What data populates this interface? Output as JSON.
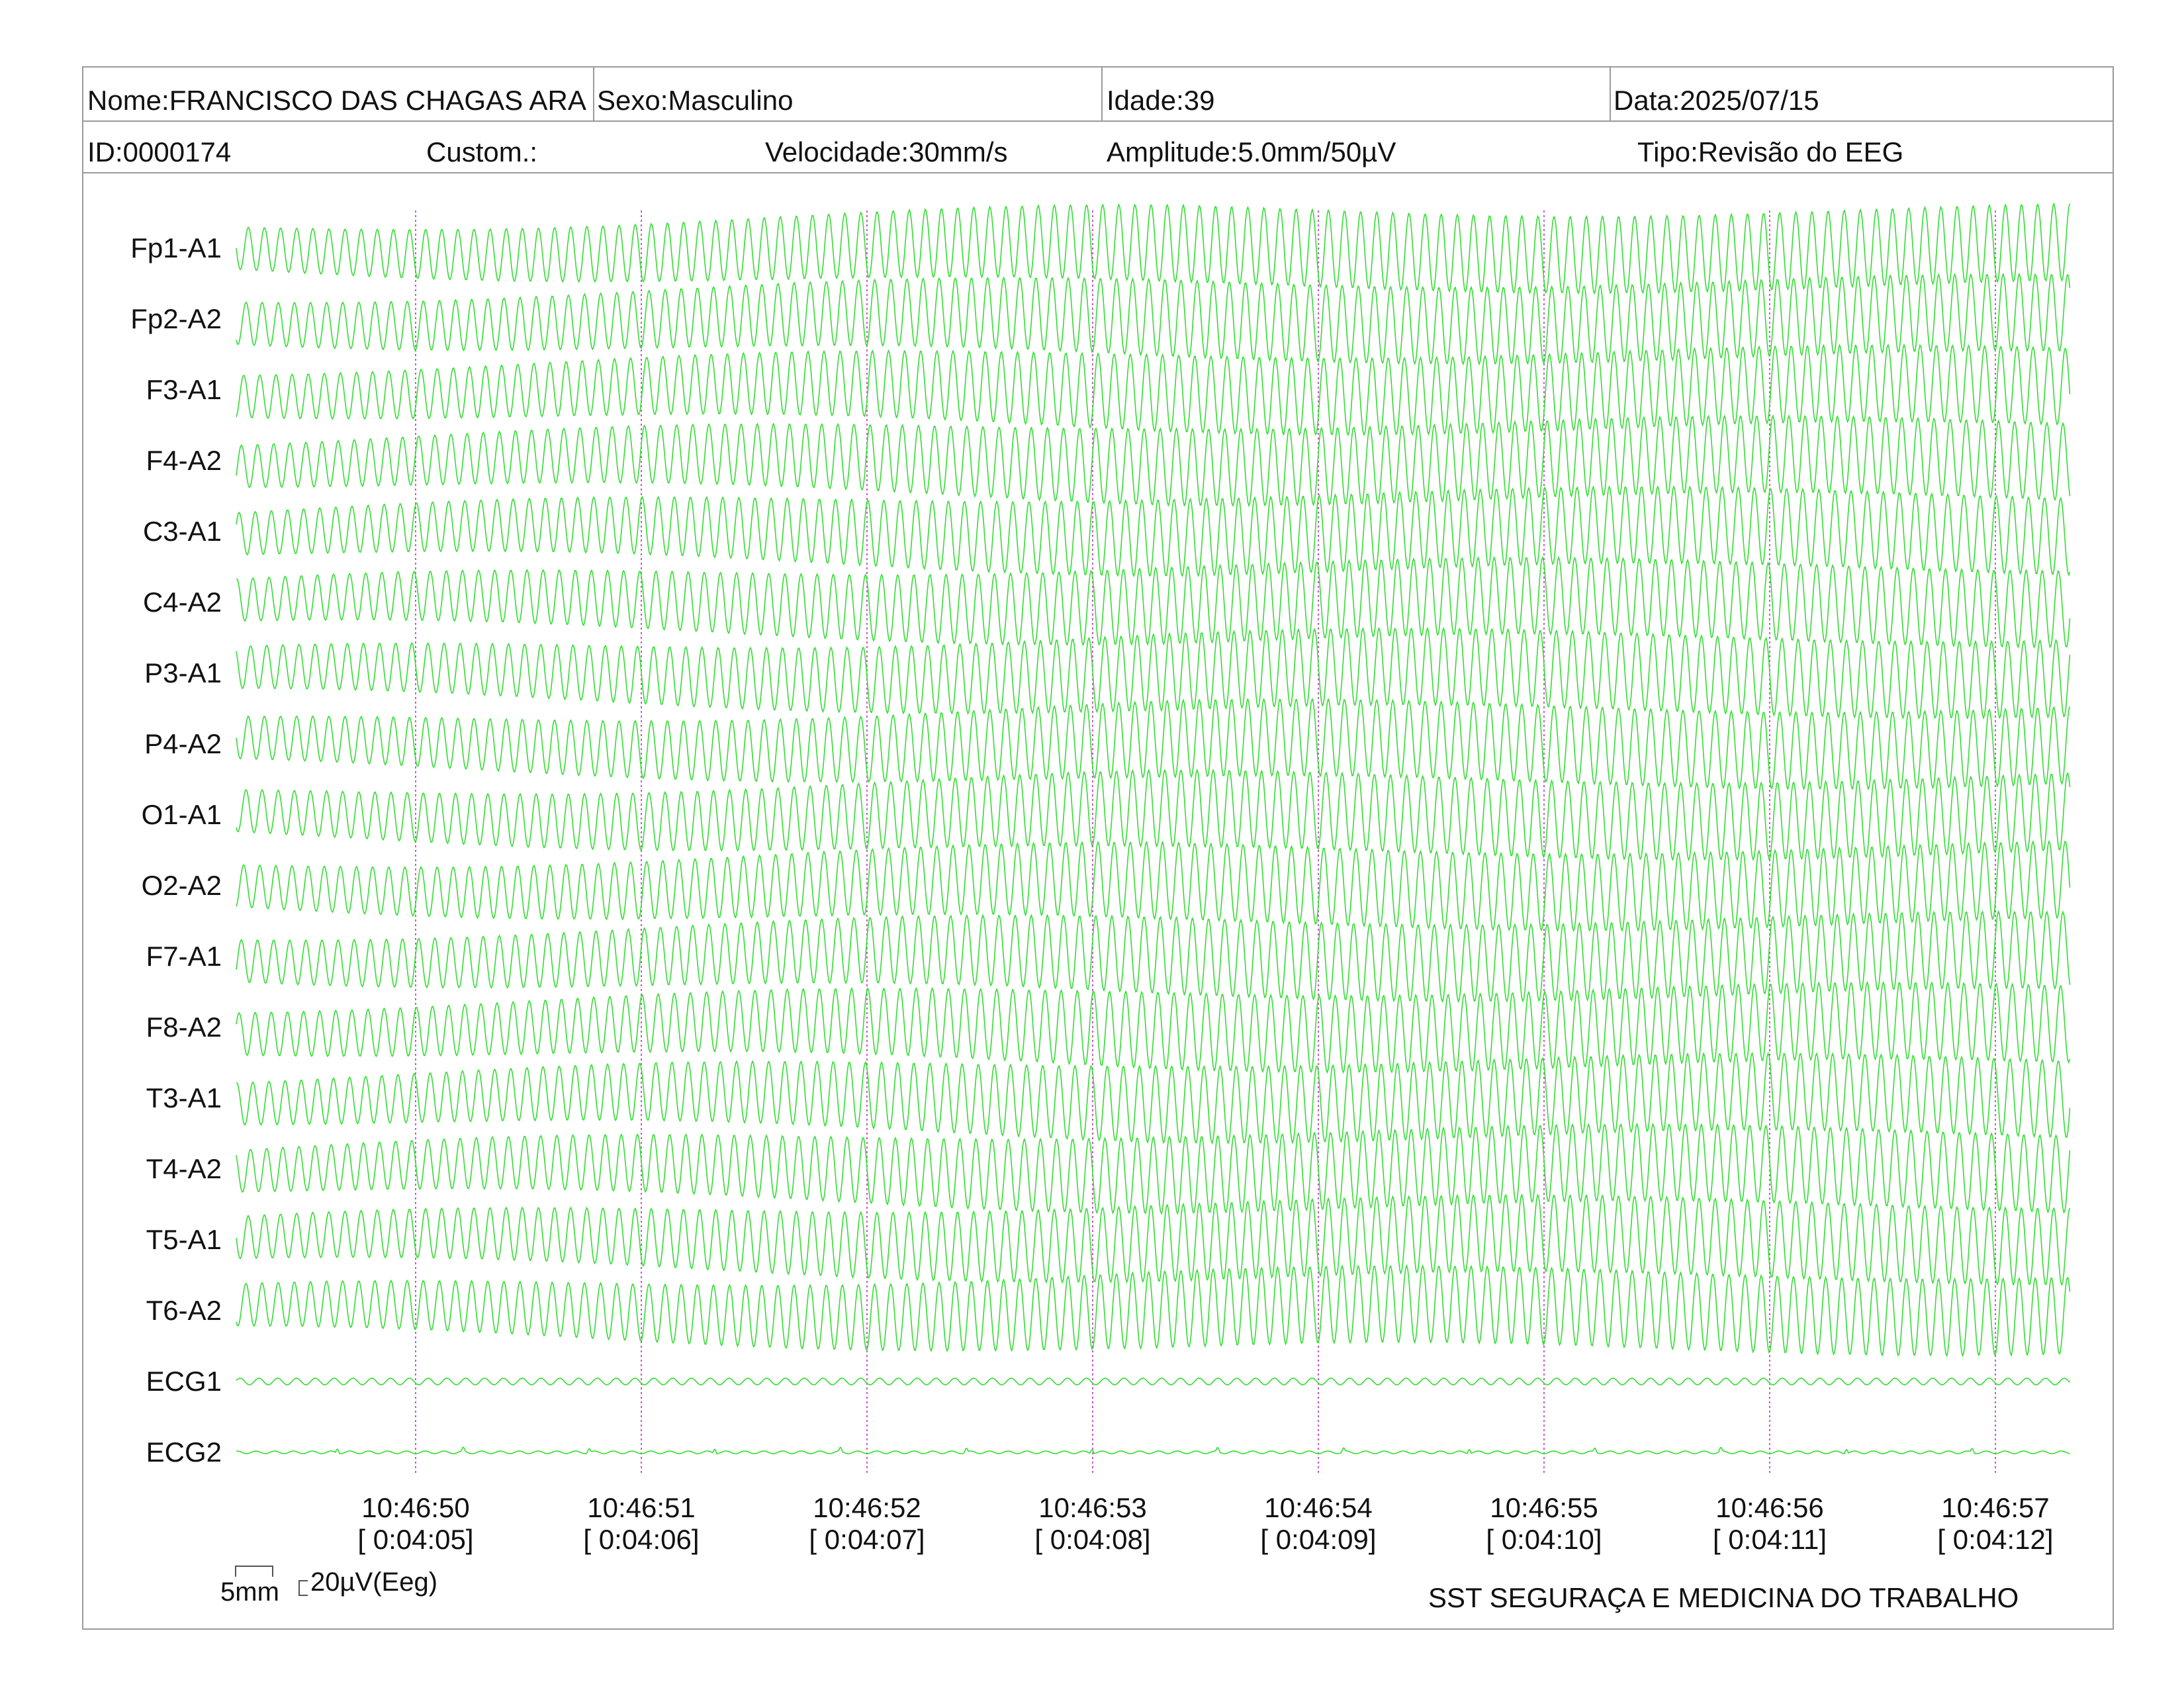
{
  "header": {
    "nome": "Nome:FRANCISCO DAS CHAGAS ARA",
    "sexo": "Sexo:Masculino",
    "idade": "Idade:39",
    "data": "Data:2025/07/15",
    "id": "ID:0000174",
    "custom": "Custom.:",
    "velocidade": "Velocidade:30mm/s",
    "amplitude": "Amplitude:5.0mm/50µV",
    "tipo": "Tipo:Revisão do EEG"
  },
  "scale": {
    "mm_label": "5mm",
    "uv_label": "20µV(Eeg)"
  },
  "footer": {
    "organization": "SST SEGURAÇA E MEDICINA DO TRABALHO"
  },
  "colors": {
    "trace": "#33dd33",
    "marker": "#cc55cc",
    "border": "#9a9a9a"
  },
  "chart_data": {
    "type": "line",
    "title": "",
    "channels": [
      "Fp1-A1",
      "Fp2-A2",
      "F3-A1",
      "F4-A2",
      "C3-A1",
      "C4-A2",
      "P3-A1",
      "P4-A2",
      "O1-A1",
      "O2-A2",
      "F7-A1",
      "F8-A2",
      "T3-A1",
      "T4-A2",
      "T5-A1",
      "T6-A2",
      "ECG1",
      "ECG2"
    ],
    "time_markers": [
      {
        "clock": "10:46:50",
        "elapsed": "[ 0:04:05]"
      },
      {
        "clock": "10:46:51",
        "elapsed": "[ 0:04:06]"
      },
      {
        "clock": "10:46:52",
        "elapsed": "[ 0:04:07]"
      },
      {
        "clock": "10:46:53",
        "elapsed": "[ 0:04:08]"
      },
      {
        "clock": "10:46:54",
        "elapsed": "[ 0:04:09]"
      },
      {
        "clock": "10:46:55",
        "elapsed": "[ 0:04:10]"
      },
      {
        "clock": "10:46:56",
        "elapsed": "[ 0:04:11]"
      },
      {
        "clock": "10:46:57",
        "elapsed": "[ 0:04:12]"
      }
    ],
    "eeg_cycles_per_second": 14,
    "ecg_cycles_per_second": 12,
    "grid": false
  }
}
